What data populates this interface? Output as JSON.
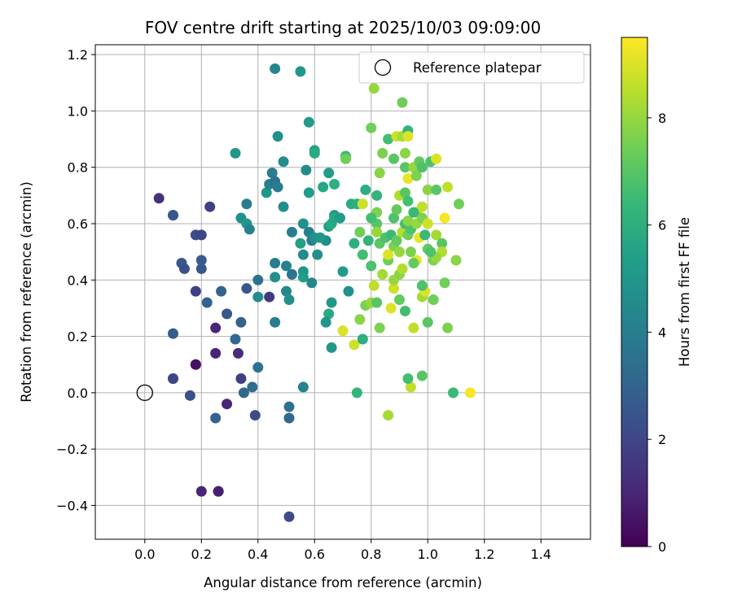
{
  "chart_data": {
    "type": "scatter",
    "title": "FOV centre drift starting at 2025/10/03 09:09:00",
    "xlabel": "Angular distance from reference (arcmin)",
    "ylabel": "Rotation from reference (arcmin)",
    "xlim": [
      -0.175,
      1.575
    ],
    "ylim": [
      -0.52,
      1.235
    ],
    "xticks": [
      0.0,
      0.2,
      0.4,
      0.6,
      0.8,
      1.0,
      1.2,
      1.4
    ],
    "xtick_labels": [
      "0.0",
      "0.2",
      "0.4",
      "0.6",
      "0.8",
      "1.0",
      "1.2",
      "1.4"
    ],
    "yticks": [
      -0.4,
      -0.2,
      0.0,
      0.2,
      0.4,
      0.6,
      0.8,
      1.0,
      1.2
    ],
    "ytick_labels": [
      "−0.4",
      "−0.2",
      "0.0",
      "0.2",
      "0.4",
      "0.6",
      "0.8",
      "1.0",
      "1.2"
    ],
    "grid": true,
    "legend": {
      "position": "top-right",
      "entries": [
        "Reference platepar"
      ]
    },
    "reference_point": {
      "x": 0.0,
      "y": 0.0,
      "label": "Reference platepar"
    },
    "colorbar": {
      "label": "Hours from first FF file",
      "range": [
        0,
        9.5
      ],
      "ticks": [
        0,
        2,
        4,
        6,
        8
      ],
      "tick_labels": [
        "0",
        "2",
        "4",
        "6",
        "8"
      ],
      "colormap": "viridis"
    },
    "points": [
      {
        "x": 0.05,
        "y": 0.69,
        "h": 1.3
      },
      {
        "x": 0.1,
        "y": 0.63,
        "h": 2.4
      },
      {
        "x": 0.1,
        "y": 0.63,
        "h": 2.6
      },
      {
        "x": 0.13,
        "y": 0.46,
        "h": 2.6
      },
      {
        "x": 0.14,
        "y": 0.44,
        "h": 2.4
      },
      {
        "x": 0.18,
        "y": 0.56,
        "h": 2.2
      },
      {
        "x": 0.2,
        "y": 0.56,
        "h": 2.0
      },
      {
        "x": 0.23,
        "y": 0.66,
        "h": 1.8
      },
      {
        "x": 0.2,
        "y": 0.44,
        "h": 2.6
      },
      {
        "x": 0.2,
        "y": 0.47,
        "h": 2.8
      },
      {
        "x": 0.18,
        "y": 0.36,
        "h": 1.8
      },
      {
        "x": 0.22,
        "y": 0.32,
        "h": 3.0
      },
      {
        "x": 0.27,
        "y": 0.36,
        "h": 3.0
      },
      {
        "x": 0.29,
        "y": 0.28,
        "h": 2.6
      },
      {
        "x": 0.32,
        "y": 0.19,
        "h": 3.2
      },
      {
        "x": 0.34,
        "y": 0.25,
        "h": 3.0
      },
      {
        "x": 0.25,
        "y": 0.23,
        "h": 1.0
      },
      {
        "x": 0.25,
        "y": 0.14,
        "h": 1.0
      },
      {
        "x": 0.18,
        "y": 0.1,
        "h": 0.2
      },
      {
        "x": 0.18,
        "y": 0.1,
        "h": 0.4
      },
      {
        "x": 0.1,
        "y": 0.21,
        "h": 2.8
      },
      {
        "x": 0.1,
        "y": 0.05,
        "h": 2.2
      },
      {
        "x": 0.1,
        "y": 0.05,
        "h": 2.0
      },
      {
        "x": 0.16,
        "y": -0.01,
        "h": 2.4
      },
      {
        "x": 0.25,
        "y": -0.09,
        "h": 3.0
      },
      {
        "x": 0.29,
        "y": -0.04,
        "h": 1.0
      },
      {
        "x": 0.33,
        "y": 0.14,
        "h": 1.2
      },
      {
        "x": 0.34,
        "y": 0.05,
        "h": 1.8
      },
      {
        "x": 0.35,
        "y": 0.0,
        "h": 3.2
      },
      {
        "x": 0.38,
        "y": 0.02,
        "h": 3.4
      },
      {
        "x": 0.39,
        "y": -0.08,
        "h": 2.2
      },
      {
        "x": 0.4,
        "y": 0.09,
        "h": 3.6
      },
      {
        "x": 0.2,
        "y": -0.35,
        "h": 1.0
      },
      {
        "x": 0.26,
        "y": -0.35,
        "h": 0.6
      },
      {
        "x": 0.26,
        "y": -0.35,
        "h": 0.8
      },
      {
        "x": 0.51,
        "y": -0.44,
        "h": 2.2
      },
      {
        "x": 0.51,
        "y": -0.05,
        "h": 3.6
      },
      {
        "x": 0.51,
        "y": -0.09,
        "h": 3.2
      },
      {
        "x": 0.56,
        "y": 0.02,
        "h": 4.2
      },
      {
        "x": 0.46,
        "y": 0.25,
        "h": 4.0
      },
      {
        "x": 0.44,
        "y": 0.34,
        "h": 1.6
      },
      {
        "x": 0.36,
        "y": 0.37,
        "h": 2.6
      },
      {
        "x": 0.4,
        "y": 0.4,
        "h": 3.6
      },
      {
        "x": 0.4,
        "y": 0.34,
        "h": 4.6
      },
      {
        "x": 0.46,
        "y": 0.41,
        "h": 4.8
      },
      {
        "x": 0.46,
        "y": 0.46,
        "h": 4.0
      },
      {
        "x": 0.5,
        "y": 0.45,
        "h": 4.2
      },
      {
        "x": 0.5,
        "y": 0.36,
        "h": 4.4
      },
      {
        "x": 0.51,
        "y": 0.33,
        "h": 4.8
      },
      {
        "x": 0.52,
        "y": 0.42,
        "h": 3.6
      },
      {
        "x": 0.52,
        "y": 0.57,
        "h": 4.0
      },
      {
        "x": 0.34,
        "y": 0.62,
        "h": 4.8
      },
      {
        "x": 0.36,
        "y": 0.6,
        "h": 5.0
      },
      {
        "x": 0.37,
        "y": 0.58,
        "h": 4.2
      },
      {
        "x": 0.36,
        "y": 0.67,
        "h": 4.0
      },
      {
        "x": 0.32,
        "y": 0.85,
        "h": 5.0
      },
      {
        "x": 0.43,
        "y": 0.71,
        "h": 5.0
      },
      {
        "x": 0.44,
        "y": 0.74,
        "h": 4.2
      },
      {
        "x": 0.45,
        "y": 0.78,
        "h": 4.0
      },
      {
        "x": 0.46,
        "y": 0.75,
        "h": 3.6
      },
      {
        "x": 0.47,
        "y": 0.73,
        "h": 4.0
      },
      {
        "x": 0.49,
        "y": 0.66,
        "h": 4.6
      },
      {
        "x": 0.49,
        "y": 0.82,
        "h": 4.6
      },
      {
        "x": 0.47,
        "y": 0.91,
        "h": 4.8
      },
      {
        "x": 0.46,
        "y": 1.15,
        "h": 4.4
      },
      {
        "x": 0.55,
        "y": 1.14,
        "h": 5.0
      },
      {
        "x": 0.58,
        "y": 0.96,
        "h": 5.2
      },
      {
        "x": 0.6,
        "y": 0.86,
        "h": 5.4
      },
      {
        "x": 0.6,
        "y": 0.85,
        "h": 5.8
      },
      {
        "x": 0.57,
        "y": 0.79,
        "h": 4.6
      },
      {
        "x": 0.58,
        "y": 0.71,
        "h": 5.2
      },
      {
        "x": 0.56,
        "y": 0.6,
        "h": 4.8
      },
      {
        "x": 0.58,
        "y": 0.57,
        "h": 4.2
      },
      {
        "x": 0.59,
        "y": 0.54,
        "h": 4.0
      },
      {
        "x": 0.6,
        "y": 0.55,
        "h": 4.8
      },
      {
        "x": 0.56,
        "y": 0.49,
        "h": 4.6
      },
      {
        "x": 0.55,
        "y": 0.53,
        "h": 5.4
      },
      {
        "x": 0.56,
        "y": 0.43,
        "h": 5.0
      },
      {
        "x": 0.56,
        "y": 0.41,
        "h": 5.2
      },
      {
        "x": 0.59,
        "y": 0.39,
        "h": 4.4
      },
      {
        "x": 0.61,
        "y": 0.49,
        "h": 4.8
      },
      {
        "x": 0.63,
        "y": 0.73,
        "h": 5.6
      },
      {
        "x": 0.65,
        "y": 0.78,
        "h": 5.2
      },
      {
        "x": 0.67,
        "y": 0.74,
        "h": 6.0
      },
      {
        "x": 0.67,
        "y": 0.63,
        "h": 5.0
      },
      {
        "x": 0.65,
        "y": 0.59,
        "h": 5.4
      },
      {
        "x": 0.66,
        "y": 0.6,
        "h": 5.8
      },
      {
        "x": 0.67,
        "y": 0.62,
        "h": 5.6
      },
      {
        "x": 0.69,
        "y": 0.62,
        "h": 5.2
      },
      {
        "x": 0.64,
        "y": 0.54,
        "h": 4.6
      },
      {
        "x": 0.62,
        "y": 0.55,
        "h": 5.0
      },
      {
        "x": 0.7,
        "y": 0.43,
        "h": 5.2
      },
      {
        "x": 0.72,
        "y": 0.36,
        "h": 4.8
      },
      {
        "x": 0.66,
        "y": 0.32,
        "h": 5.0
      },
      {
        "x": 0.65,
        "y": 0.28,
        "h": 5.8
      },
      {
        "x": 0.64,
        "y": 0.25,
        "h": 5.0
      },
      {
        "x": 0.66,
        "y": 0.16,
        "h": 5.0
      },
      {
        "x": 0.71,
        "y": 0.84,
        "h": 6.4
      },
      {
        "x": 0.71,
        "y": 0.83,
        "h": 7.4
      },
      {
        "x": 0.73,
        "y": 0.67,
        "h": 5.8
      },
      {
        "x": 0.75,
        "y": 0.67,
        "h": 6.0
      },
      {
        "x": 0.77,
        "y": 0.67,
        "h": 8.8
      },
      {
        "x": 0.78,
        "y": 0.72,
        "h": 6.0
      },
      {
        "x": 0.8,
        "y": 0.94,
        "h": 7.4
      },
      {
        "x": 0.81,
        "y": 1.08,
        "h": 8.0
      },
      {
        "x": 0.82,
        "y": 0.64,
        "h": 7.6
      },
      {
        "x": 0.82,
        "y": 0.7,
        "h": 6.2
      },
      {
        "x": 0.83,
        "y": 0.78,
        "h": 7.8
      },
      {
        "x": 0.84,
        "y": 0.85,
        "h": 7.6
      },
      {
        "x": 0.86,
        "y": 0.9,
        "h": 6.6
      },
      {
        "x": 0.88,
        "y": 0.83,
        "h": 7.0
      },
      {
        "x": 0.89,
        "y": 0.91,
        "h": 8.8
      },
      {
        "x": 0.91,
        "y": 1.03,
        "h": 7.4
      },
      {
        "x": 0.91,
        "y": 0.91,
        "h": 8.2
      },
      {
        "x": 0.93,
        "y": 0.93,
        "h": 6.2
      },
      {
        "x": 0.93,
        "y": 0.91,
        "h": 9.0
      },
      {
        "x": 0.92,
        "y": 0.85,
        "h": 7.8
      },
      {
        "x": 0.92,
        "y": 0.8,
        "h": 7.0
      },
      {
        "x": 0.93,
        "y": 0.76,
        "h": 9.2
      },
      {
        "x": 0.95,
        "y": 0.8,
        "h": 8.0
      },
      {
        "x": 0.96,
        "y": 0.77,
        "h": 7.6
      },
      {
        "x": 0.97,
        "y": 0.82,
        "h": 7.2
      },
      {
        "x": 0.98,
        "y": 0.8,
        "h": 6.8
      },
      {
        "x": 0.96,
        "y": 0.64,
        "h": 8.2
      },
      {
        "x": 0.98,
        "y": 0.66,
        "h": 8.6
      },
      {
        "x": 1.0,
        "y": 0.72,
        "h": 7.8
      },
      {
        "x": 1.01,
        "y": 0.82,
        "h": 6.8
      },
      {
        "x": 1.03,
        "y": 0.83,
        "h": 9.0
      },
      {
        "x": 1.03,
        "y": 0.72,
        "h": 7.0
      },
      {
        "x": 1.07,
        "y": 0.73,
        "h": 8.6
      },
      {
        "x": 1.06,
        "y": 0.62,
        "h": 9.4
      },
      {
        "x": 1.11,
        "y": 0.67,
        "h": 7.4
      },
      {
        "x": 1.03,
        "y": 0.56,
        "h": 8.2
      },
      {
        "x": 1.05,
        "y": 0.53,
        "h": 7.0
      },
      {
        "x": 1.05,
        "y": 0.5,
        "h": 8.4
      },
      {
        "x": 1.02,
        "y": 0.47,
        "h": 7.6
      },
      {
        "x": 1.03,
        "y": 0.48,
        "h": 8.0
      },
      {
        "x": 1.06,
        "y": 0.39,
        "h": 7.4
      },
      {
        "x": 1.1,
        "y": 0.47,
        "h": 7.8
      },
      {
        "x": 1.02,
        "y": 0.33,
        "h": 7.4
      },
      {
        "x": 1.0,
        "y": 0.25,
        "h": 7.0
      },
      {
        "x": 1.07,
        "y": 0.23,
        "h": 7.6
      },
      {
        "x": 0.98,
        "y": 0.34,
        "h": 8.2
      },
      {
        "x": 0.99,
        "y": 0.36,
        "h": 9.0
      },
      {
        "x": 0.98,
        "y": 0.38,
        "h": 6.8
      },
      {
        "x": 0.96,
        "y": 0.47,
        "h": 9.2
      },
      {
        "x": 0.95,
        "y": 0.23,
        "h": 8.6
      },
      {
        "x": 0.94,
        "y": 0.02,
        "h": 8.6
      },
      {
        "x": 0.98,
        "y": 0.06,
        "h": 7.0
      },
      {
        "x": 0.93,
        "y": 0.05,
        "h": 6.6
      },
      {
        "x": 1.09,
        "y": 0.0,
        "h": 6.4
      },
      {
        "x": 1.15,
        "y": 0.0,
        "h": 9.4
      },
      {
        "x": 0.86,
        "y": -0.08,
        "h": 8.2
      },
      {
        "x": 0.75,
        "y": 0.0,
        "h": 6.2
      },
      {
        "x": 0.74,
        "y": 0.17,
        "h": 8.8
      },
      {
        "x": 0.77,
        "y": 0.19,
        "h": 6.0
      },
      {
        "x": 0.7,
        "y": 0.22,
        "h": 9.0
      },
      {
        "x": 0.76,
        "y": 0.26,
        "h": 7.8
      },
      {
        "x": 0.78,
        "y": 0.31,
        "h": 7.6
      },
      {
        "x": 0.8,
        "y": 0.32,
        "h": 8.0
      },
      {
        "x": 0.82,
        "y": 0.32,
        "h": 7.0
      },
      {
        "x": 0.81,
        "y": 0.38,
        "h": 8.6
      },
      {
        "x": 0.83,
        "y": 0.23,
        "h": 7.6
      },
      {
        "x": 0.87,
        "y": 0.3,
        "h": 9.0
      },
      {
        "x": 0.88,
        "y": 0.37,
        "h": 8.8
      },
      {
        "x": 0.9,
        "y": 0.33,
        "h": 7.2
      },
      {
        "x": 0.92,
        "y": 0.29,
        "h": 6.6
      },
      {
        "x": 0.95,
        "y": 0.46,
        "h": 7.2
      },
      {
        "x": 0.84,
        "y": 0.42,
        "h": 8.2
      },
      {
        "x": 0.86,
        "y": 0.47,
        "h": 7.4
      },
      {
        "x": 0.88,
        "y": 0.4,
        "h": 8.0
      },
      {
        "x": 0.9,
        "y": 0.42,
        "h": 7.8
      },
      {
        "x": 0.91,
        "y": 0.44,
        "h": 8.4
      },
      {
        "x": 0.8,
        "y": 0.45,
        "h": 6.8
      },
      {
        "x": 0.77,
        "y": 0.49,
        "h": 6.6
      },
      {
        "x": 0.79,
        "y": 0.54,
        "h": 6.2
      },
      {
        "x": 0.74,
        "y": 0.53,
        "h": 6.0
      },
      {
        "x": 0.83,
        "y": 0.53,
        "h": 7.0
      },
      {
        "x": 0.85,
        "y": 0.55,
        "h": 6.8
      },
      {
        "x": 0.87,
        "y": 0.56,
        "h": 6.4
      },
      {
        "x": 0.88,
        "y": 0.52,
        "h": 7.6
      },
      {
        "x": 0.89,
        "y": 0.54,
        "h": 7.2
      },
      {
        "x": 0.9,
        "y": 0.5,
        "h": 8.0
      },
      {
        "x": 0.86,
        "y": 0.49,
        "h": 9.0
      },
      {
        "x": 0.91,
        "y": 0.57,
        "h": 8.4
      },
      {
        "x": 0.92,
        "y": 0.6,
        "h": 6.6
      },
      {
        "x": 0.93,
        "y": 0.56,
        "h": 7.4
      },
      {
        "x": 0.94,
        "y": 0.58,
        "h": 6.8
      },
      {
        "x": 0.96,
        "y": 0.6,
        "h": 8.0
      },
      {
        "x": 0.97,
        "y": 0.55,
        "h": 9.2
      },
      {
        "x": 0.98,
        "y": 0.62,
        "h": 7.6
      },
      {
        "x": 1.0,
        "y": 0.6,
        "h": 8.8
      },
      {
        "x": 1.0,
        "y": 0.51,
        "h": 7.2
      },
      {
        "x": 1.01,
        "y": 0.5,
        "h": 6.8
      },
      {
        "x": 0.99,
        "y": 0.56,
        "h": 6.4
      },
      {
        "x": 0.88,
        "y": 0.62,
        "h": 6.8
      },
      {
        "x": 0.89,
        "y": 0.65,
        "h": 7.2
      },
      {
        "x": 0.9,
        "y": 0.7,
        "h": 8.4
      },
      {
        "x": 0.92,
        "y": 0.71,
        "h": 7.0
      },
      {
        "x": 0.93,
        "y": 0.68,
        "h": 6.6
      },
      {
        "x": 0.82,
        "y": 0.6,
        "h": 7.0
      },
      {
        "x": 0.8,
        "y": 0.62,
        "h": 6.6
      },
      {
        "x": 0.82,
        "y": 0.57,
        "h": 8.0
      },
      {
        "x": 0.76,
        "y": 0.57,
        "h": 7.4
      },
      {
        "x": 0.93,
        "y": 0.61,
        "h": 7.8
      },
      {
        "x": 0.95,
        "y": 0.64,
        "h": 6.4
      },
      {
        "x": 0.94,
        "y": 0.5,
        "h": 7.6
      }
    ]
  }
}
